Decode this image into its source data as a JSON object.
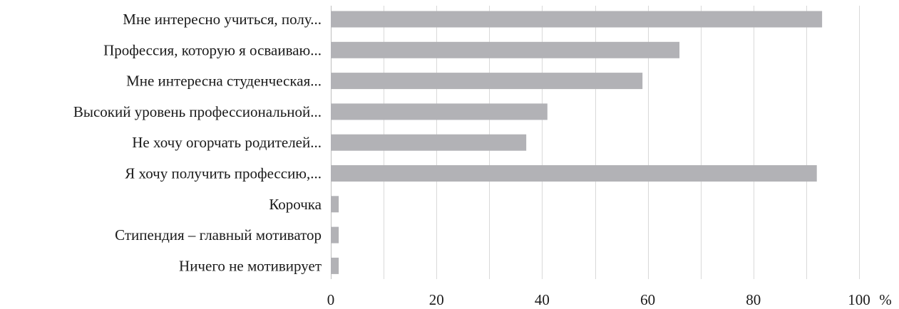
{
  "chart_data": {
    "type": "bar",
    "orientation": "horizontal",
    "categories": [
      "Мне интересно учиться, полу...",
      "Профессия, которую я осваиваю...",
      "Мне интересна студенческая...",
      "Высокий уровень профессиональной...",
      "Не хочу огорчать родителей...",
      "Я хочу получить профессию,...",
      "Корочка",
      "Стипендия – главный мотиватор",
      "Ничего не мотивирует"
    ],
    "values": [
      93,
      66,
      59,
      41,
      37,
      92,
      1.5,
      1.5,
      1.5
    ],
    "xlim": [
      0,
      100
    ],
    "x_ticks": [
      "0",
      "20",
      "40",
      "60",
      "80",
      "100"
    ],
    "x_unit": "%",
    "grid": true,
    "bar_color": "#b2b2b6",
    "grid_color": "#d9d9d9",
    "title": "",
    "xlabel": "",
    "ylabel": ""
  }
}
